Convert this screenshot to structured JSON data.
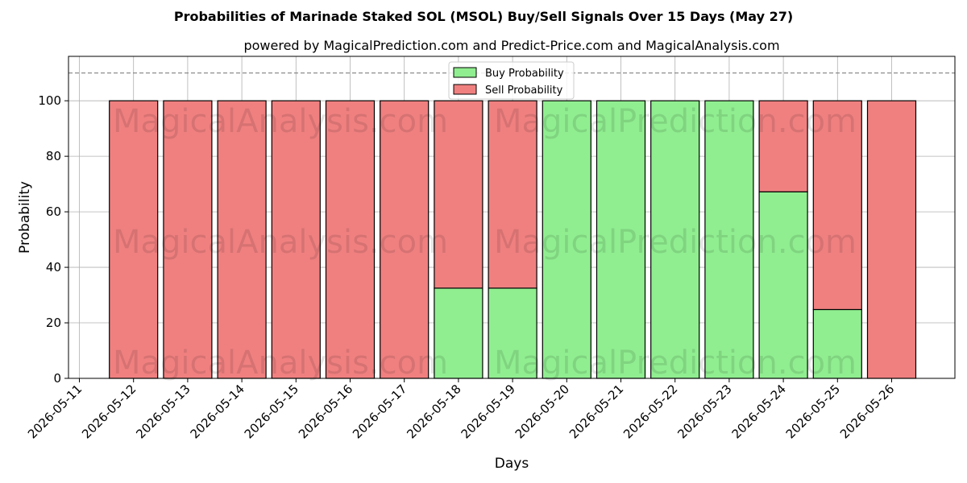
{
  "chart_data": {
    "type": "bar",
    "stacked": true,
    "title": "Probabilities of Marinade Staked SOL (MSOL) Buy/Sell Signals Over 15 Days (May 27)",
    "subtitle": "powered by MagicalPrediction.com and Predict-Price.com and MagicalAnalysis.com",
    "xlabel": "Days",
    "ylabel": "Probability",
    "ylim": [
      0,
      116
    ],
    "yticks": [
      0,
      20,
      40,
      60,
      80,
      100
    ],
    "reference_line": 110,
    "grid": true,
    "legend_position": "top-center",
    "xtick_labels": [
      "2026-05-11",
      "2026-05-12",
      "2026-05-13",
      "2026-05-14",
      "2026-05-15",
      "2026-05-16",
      "2026-05-17",
      "2026-05-18",
      "2026-05-19",
      "2026-05-20",
      "2026-05-21",
      "2026-05-22",
      "2026-05-23",
      "2026-05-24",
      "2026-05-25",
      "2026-05-26"
    ],
    "categories": [
      "2026-05-12",
      "2026-05-13",
      "2026-05-14",
      "2026-05-15",
      "2026-05-16",
      "2026-05-17",
      "2026-05-18",
      "2026-05-19",
      "2026-05-20",
      "2026-05-21",
      "2026-05-22",
      "2026-05-23",
      "2026-05-24",
      "2026-05-25",
      "2026-05-26"
    ],
    "series": [
      {
        "name": "Buy Probability",
        "color": "#90ee90",
        "values": [
          0,
          0,
          0,
          0,
          0,
          0,
          32.5,
          32.5,
          100,
          100,
          100,
          100,
          67.2,
          24.8,
          0
        ]
      },
      {
        "name": "Sell Probability",
        "color": "#f08080",
        "values": [
          100,
          100,
          100,
          100,
          100,
          100,
          67.5,
          67.5,
          0,
          0,
          0,
          0,
          32.8,
          75.2,
          100
        ]
      }
    ],
    "watermarks": [
      "MagicalAnalysis.com",
      "MagicalPrediction.com"
    ]
  }
}
